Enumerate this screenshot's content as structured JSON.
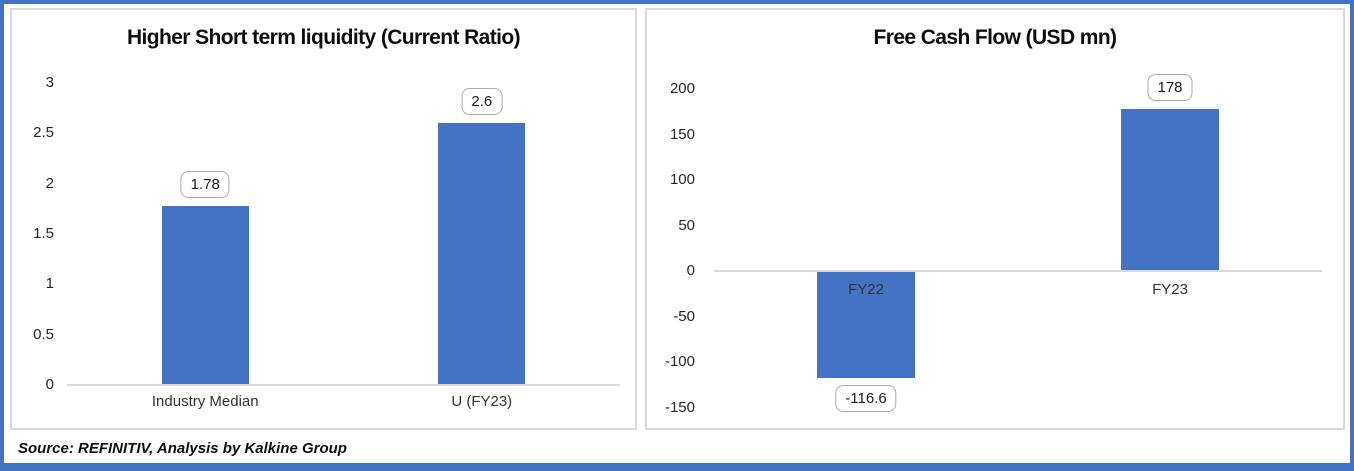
{
  "page": {
    "accent_color": "#4472C4",
    "panel_border_color": "#D9D9D9",
    "axis_line_color": "#D9D9D9",
    "callout_border_color": "#ABABAB",
    "source_note": "Source: REFINITIV, Analysis by Kalkine Group"
  },
  "chart_data": [
    {
      "type": "bar",
      "title": "Higher Short term liquidity (Current Ratio)",
      "categories": [
        "Industry Median",
        "U (FY23)"
      ],
      "values": [
        1.78,
        2.6
      ],
      "data_labels": [
        "1.78",
        "2.6"
      ],
      "bar_color": "#4472C4",
      "xlabel": "",
      "ylabel": "",
      "ylim": [
        0,
        3
      ],
      "yticks": [
        0,
        0.5,
        1,
        1.5,
        2,
        2.5,
        3
      ],
      "ytick_labels": [
        "0",
        "0.5",
        "1",
        "1.5",
        "2",
        "2.5",
        "3"
      ],
      "grid": false,
      "legend": "none",
      "data_label_style": "rounded-callout"
    },
    {
      "type": "bar",
      "title": "Free Cash Flow (USD mn)",
      "categories": [
        "FY22",
        "FY23"
      ],
      "values": [
        -116.6,
        178
      ],
      "data_labels": [
        "-116.6",
        "178"
      ],
      "bar_color": "#4472C4",
      "xlabel": "",
      "ylabel": "",
      "ylim": [
        -150,
        200
      ],
      "yticks": [
        -150,
        -100,
        -50,
        0,
        50,
        100,
        150,
        200
      ],
      "ytick_labels": [
        "-150",
        "-100",
        "-50",
        "0",
        "50",
        "100",
        "150",
        "200"
      ],
      "grid": false,
      "legend": "none",
      "data_label_style": "rounded-callout"
    }
  ]
}
